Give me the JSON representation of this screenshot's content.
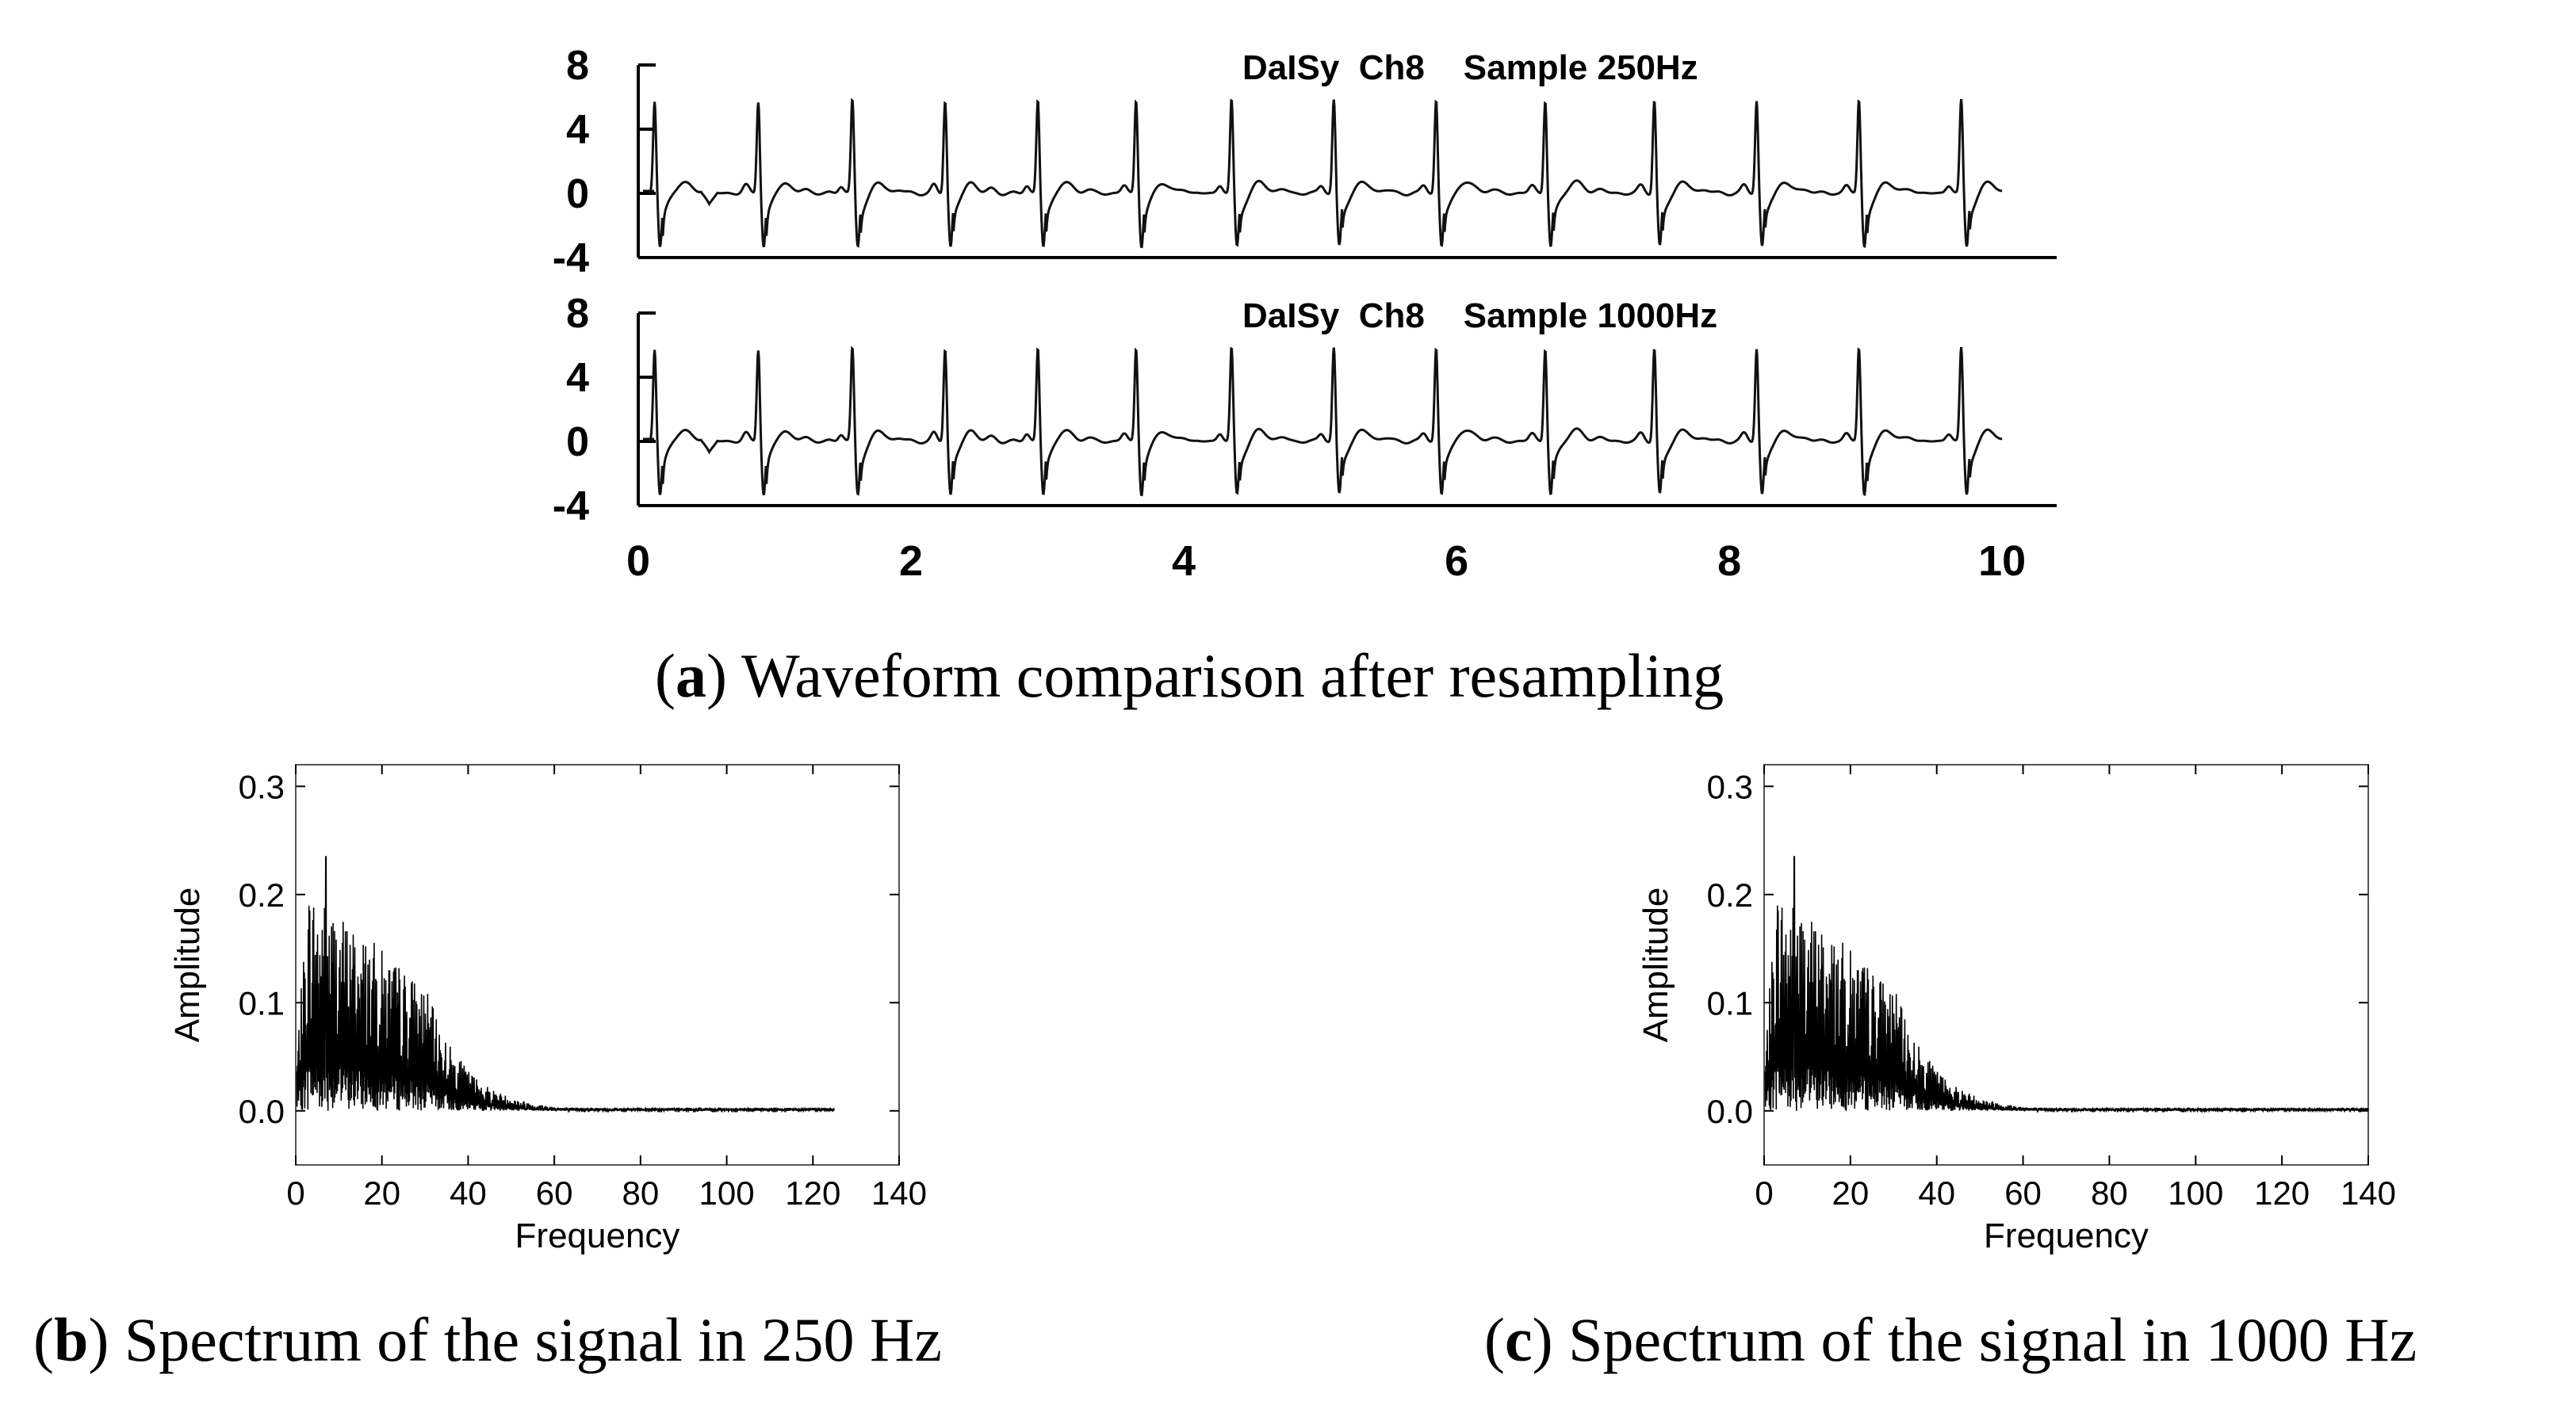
{
  "chart_data": [
    {
      "type": "line",
      "id": "a1",
      "title": "DaISy  Ch8    Sample 250Hz",
      "xlabel": "",
      "ylabel": "",
      "xlim": [
        0,
        10.4
      ],
      "ylim": [
        -4,
        8
      ],
      "yticks": [
        "8",
        "4",
        "0",
        "-4"
      ],
      "xticks": [],
      "beats": [
        0.12,
        0.88,
        1.57,
        2.25,
        2.93,
        3.65,
        4.35,
        5.1,
        5.85,
        6.65,
        7.45,
        8.2,
        8.95,
        9.7
      ],
      "peak": 5.8,
      "trough": -3.3,
      "end_x": 10
    },
    {
      "type": "line",
      "id": "a2",
      "title": "DaISy  Ch8    Sample 1000Hz",
      "xlabel": "",
      "ylabel": "",
      "xlim": [
        0,
        10.4
      ],
      "ylim": [
        -4,
        8
      ],
      "yticks": [
        "8",
        "4",
        "0",
        "-4"
      ],
      "xticks": [
        "0",
        "2",
        "4",
        "6",
        "8",
        "10"
      ],
      "beats": [
        0.12,
        0.88,
        1.57,
        2.25,
        2.93,
        3.65,
        4.35,
        5.1,
        5.85,
        6.65,
        7.45,
        8.2,
        8.95,
        9.7
      ],
      "peak": 5.8,
      "trough": -3.3,
      "end_x": 10
    },
    {
      "type": "line",
      "id": "b",
      "xlabel": "Frequency",
      "ylabel": "Amplitude",
      "xlim": [
        0,
        140
      ],
      "ylim": [
        -0.05,
        0.32
      ],
      "xticks": [
        "0",
        "20",
        "40",
        "60",
        "80",
        "100",
        "120",
        "140"
      ],
      "yticks": [
        "0.0",
        "0.1",
        "0.2",
        "0.3"
      ],
      "x_end": 125,
      "peak_amplitude": 0.235,
      "peak_frequency": 7
    },
    {
      "type": "line",
      "id": "c",
      "xlabel": "Frequency",
      "ylabel": "Amplitude",
      "xlim": [
        0,
        140
      ],
      "ylim": [
        -0.05,
        0.32
      ],
      "xticks": [
        "0",
        "20",
        "40",
        "60",
        "80",
        "100",
        "120",
        "140"
      ],
      "yticks": [
        "0.0",
        "0.1",
        "0.2",
        "0.3"
      ],
      "x_end": 140,
      "peak_amplitude": 0.235,
      "peak_frequency": 7
    }
  ],
  "captions": {
    "a": {
      "letter": "a",
      "text": " Waveform comparison after resampling"
    },
    "b": {
      "letter": "b",
      "text": " Spectrum of the signal in 250 Hz"
    },
    "c": {
      "letter": "c",
      "text": " Spectrum of the signal in 1000 Hz"
    }
  }
}
